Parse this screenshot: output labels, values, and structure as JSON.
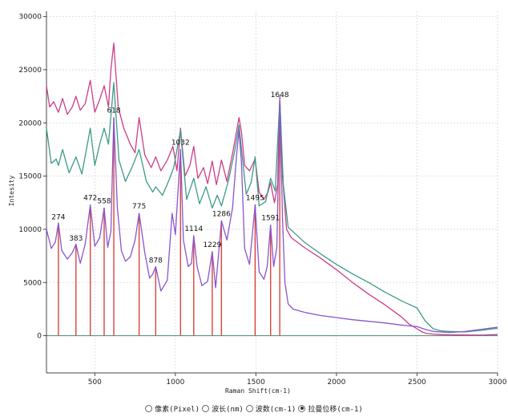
{
  "chart_data": {
    "type": "line",
    "xlabel": "Raman Shift(cm-1)",
    "ylabel": "Intesity",
    "xlim": [
      200,
      3000
    ],
    "ylim": [
      -3500,
      30500
    ],
    "x_ticks": [
      500,
      1000,
      1500,
      2000,
      2500,
      3000
    ],
    "y_ticks": [
      0,
      5000,
      10000,
      15000,
      20000,
      25000,
      30000
    ],
    "grid": true,
    "colors": {
      "pink": "#cc3d8a",
      "green": "#3d9a87",
      "purple": "#8a55cf",
      "stick": "#d9453d",
      "baseline": "#3e8e77"
    },
    "series": [
      {
        "color": "pink",
        "x": [
          200,
          220,
          245,
          274,
          300,
          330,
          360,
          383,
          410,
          440,
          472,
          500,
          530,
          558,
          585,
          600,
          618,
          645,
          680,
          720,
          750,
          775,
          810,
          850,
          878,
          910,
          950,
          985,
          1010,
          1032,
          1060,
          1090,
          1114,
          1140,
          1175,
          1200,
          1229,
          1255,
          1286,
          1320,
          1360,
          1395,
          1410,
          1430,
          1460,
          1495,
          1520,
          1550,
          1575,
          1591,
          1615,
          1635,
          1648,
          1665,
          1690,
          1720,
          1800,
          1900,
          2000,
          2100,
          2200,
          2300,
          2400,
          2450,
          2500,
          2530,
          2560,
          2600,
          2650,
          2700,
          2800,
          2900,
          3000
        ],
        "y": [
          23500,
          21500,
          22000,
          21000,
          22300,
          20800,
          21500,
          22500,
          21200,
          21800,
          24000,
          21000,
          22200,
          23500,
          21500,
          25000,
          27500,
          21500,
          19500,
          18000,
          17200,
          20500,
          17000,
          15800,
          16800,
          15500,
          16500,
          17800,
          15500,
          19500,
          15000,
          16000,
          17800,
          14800,
          15800,
          14300,
          16400,
          14200,
          16500,
          14500,
          17500,
          20500,
          19200,
          16000,
          15500,
          16600,
          13500,
          12800,
          13500,
          14400,
          12500,
          14200,
          22500,
          15000,
          10000,
          9200,
          8300,
          7300,
          6200,
          5000,
          3900,
          2900,
          1800,
          1100,
          650,
          350,
          200,
          150,
          100,
          80,
          60,
          50,
          100
        ]
      },
      {
        "color": "green",
        "x": [
          200,
          230,
          260,
          274,
          300,
          340,
          383,
          420,
          472,
          500,
          530,
          558,
          585,
          618,
          650,
          690,
          730,
          775,
          820,
          860,
          878,
          920,
          960,
          990,
          1032,
          1070,
          1114,
          1150,
          1190,
          1229,
          1260,
          1286,
          1330,
          1370,
          1395,
          1410,
          1440,
          1470,
          1495,
          1520,
          1560,
          1591,
          1620,
          1648,
          1670,
          1700,
          1800,
          1900,
          2000,
          2100,
          2200,
          2300,
          2400,
          2500,
          2550,
          2600,
          2650,
          2700,
          2800,
          2900,
          3000
        ],
        "y": [
          19500,
          16200,
          16600,
          16000,
          17500,
          15300,
          16800,
          15200,
          19500,
          16000,
          18000,
          19500,
          18000,
          23800,
          16500,
          14500,
          15800,
          17500,
          14500,
          13500,
          14000,
          13200,
          14600,
          15800,
          19300,
          12800,
          14800,
          12400,
          14000,
          12000,
          13200,
          12200,
          14600,
          17500,
          19800,
          17600,
          13300,
          14400,
          16800,
          12200,
          12600,
          14800,
          13600,
          22200,
          14200,
          10200,
          8800,
          7700,
          6700,
          5800,
          5000,
          4100,
          3300,
          2600,
          1400,
          650,
          450,
          400,
          350,
          500,
          700
        ]
      },
      {
        "color": "purple",
        "x": [
          200,
          230,
          255,
          274,
          295,
          330,
          360,
          383,
          410,
          440,
          472,
          500,
          530,
          558,
          580,
          600,
          618,
          640,
          665,
          690,
          720,
          750,
          775,
          810,
          840,
          860,
          878,
          910,
          950,
          980,
          1000,
          1032,
          1050,
          1080,
          1100,
          1114,
          1135,
          1165,
          1200,
          1229,
          1250,
          1286,
          1320,
          1355,
          1380,
          1395,
          1410,
          1430,
          1460,
          1495,
          1520,
          1550,
          1570,
          1591,
          1610,
          1630,
          1648,
          1665,
          1680,
          1700,
          1730,
          1800,
          1900,
          2000,
          2100,
          2200,
          2300,
          2400,
          2500,
          2550,
          2600,
          2700,
          2800,
          2900,
          3000
        ],
        "y": [
          10000,
          8200,
          8800,
          10600,
          8000,
          7200,
          7800,
          8600,
          6800,
          8600,
          12300,
          8400,
          9200,
          12000,
          8300,
          9800,
          20500,
          12000,
          8000,
          7000,
          7400,
          9000,
          11500,
          7800,
          5400,
          5800,
          6500,
          4200,
          5200,
          11500,
          9500,
          17500,
          9000,
          6500,
          6800,
          9400,
          6500,
          4700,
          5100,
          7900,
          4500,
          10800,
          9000,
          12000,
          17000,
          19300,
          16300,
          8200,
          6700,
          12300,
          6000,
          5300,
          6500,
          10400,
          6500,
          8300,
          22000,
          11000,
          5000,
          3000,
          2500,
          2200,
          1900,
          1700,
          1500,
          1350,
          1200,
          1000,
          850,
          600,
          400,
          300,
          400,
          600,
          800
        ]
      }
    ],
    "peaks": [
      {
        "x": 274,
        "y": 10500,
        "label": "274"
      },
      {
        "x": 383,
        "y": 8500,
        "label": "383"
      },
      {
        "x": 472,
        "y": 12300,
        "label": "472"
      },
      {
        "x": 558,
        "y": 12000,
        "label": "558"
      },
      {
        "x": 618,
        "y": 20500,
        "label": "618"
      },
      {
        "x": 775,
        "y": 11500,
        "label": "775"
      },
      {
        "x": 878,
        "y": 6400,
        "label": "878"
      },
      {
        "x": 1032,
        "y": 17500,
        "label": "1032"
      },
      {
        "x": 1114,
        "y": 9400,
        "label": "1114"
      },
      {
        "x": 1229,
        "y": 7900,
        "label": "1229"
      },
      {
        "x": 1286,
        "y": 10800,
        "label": "1286"
      },
      {
        "x": 1495,
        "y": 12300,
        "label": "1495"
      },
      {
        "x": 1591,
        "y": 10400,
        "label": "1591"
      },
      {
        "x": 1648,
        "y": 22000,
        "label": "1648"
      }
    ]
  },
  "controls": {
    "options": [
      {
        "label": "像素(Pixel)",
        "selected": false
      },
      {
        "label": "波长(nm)",
        "selected": false
      },
      {
        "label": "波数(cm-1)",
        "selected": false
      },
      {
        "label": "拉曼位移(cm-1)",
        "selected": true
      }
    ]
  }
}
